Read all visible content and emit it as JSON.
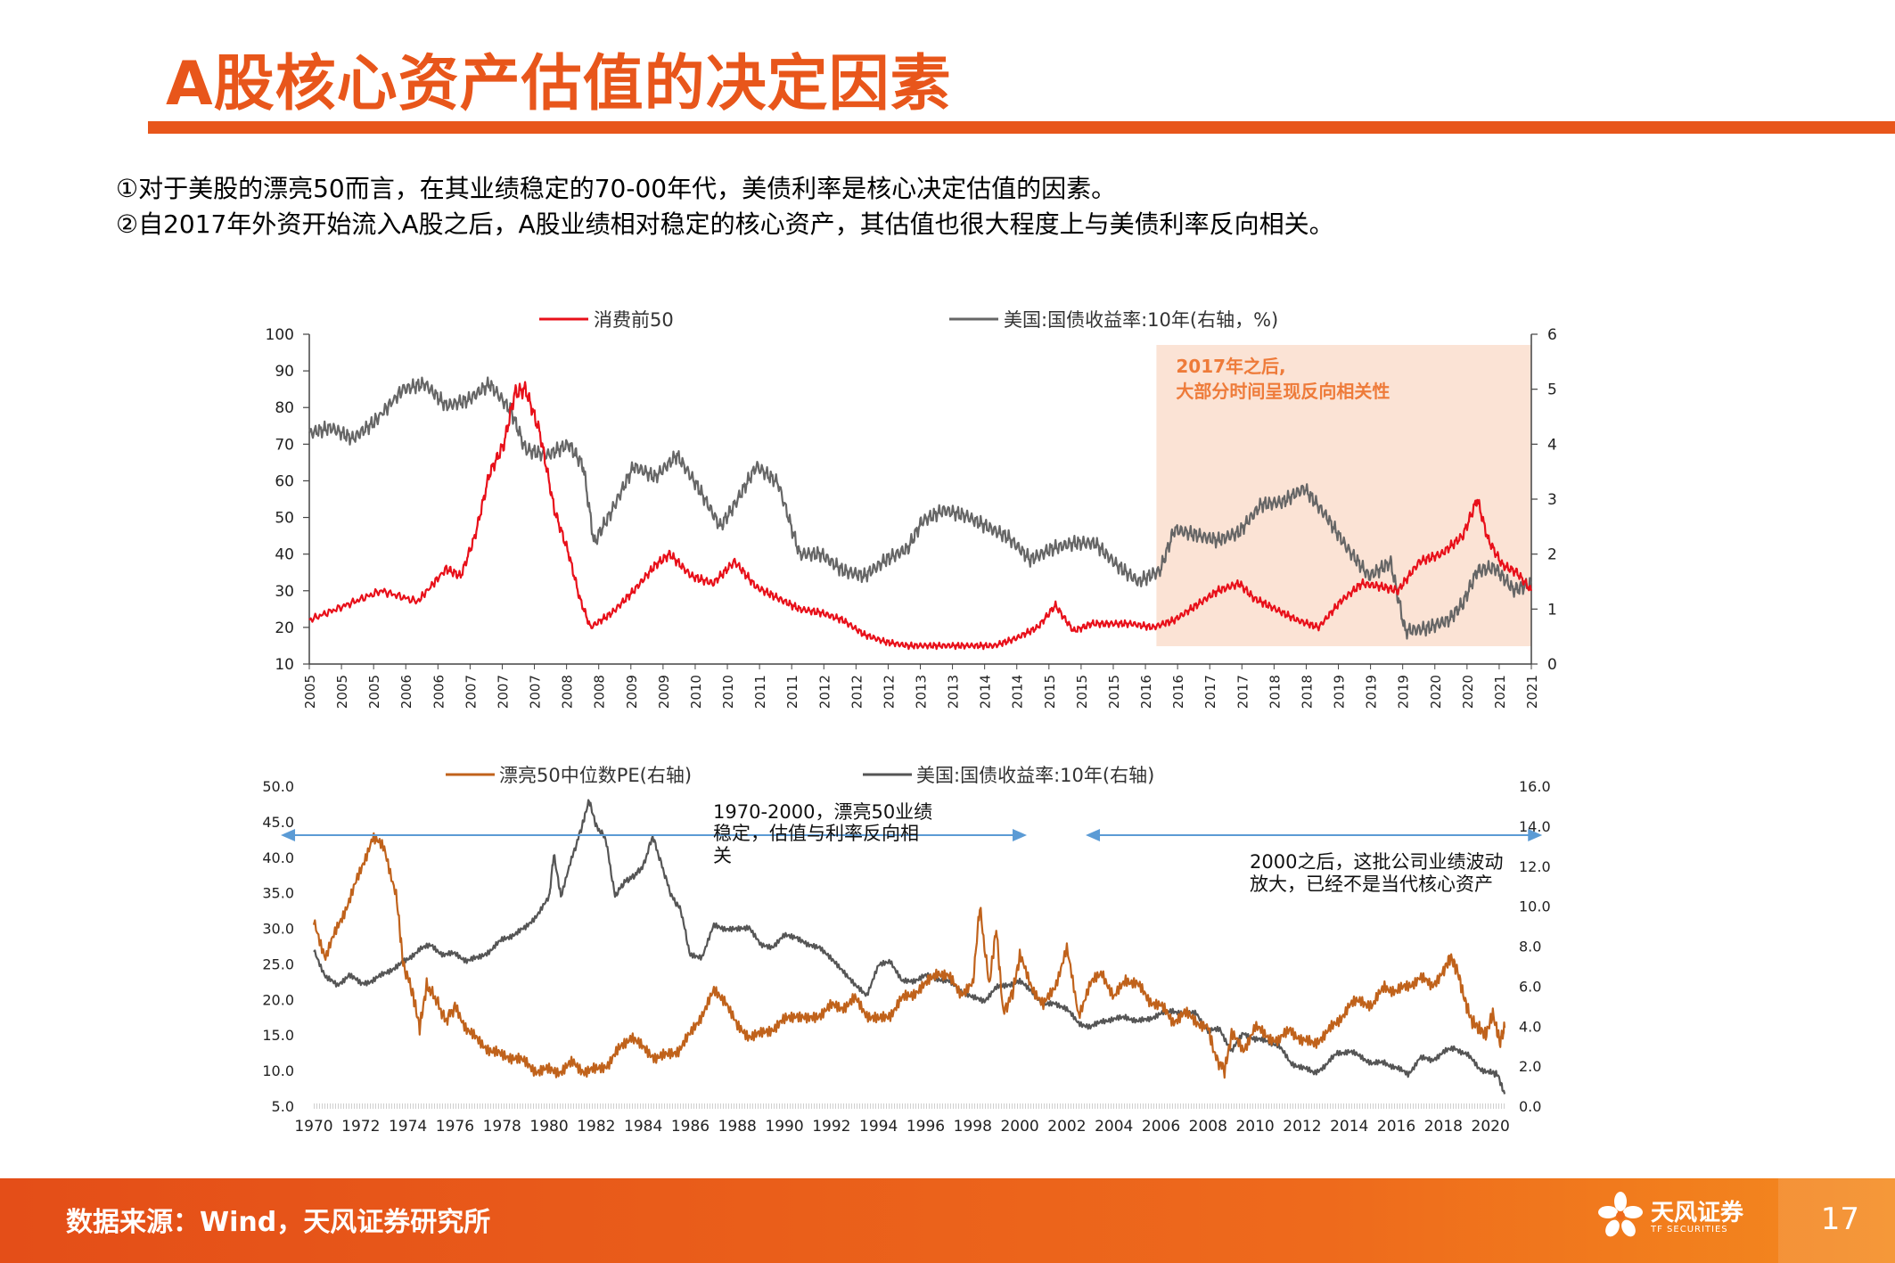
{
  "header": {
    "title": "A股核心资产估值的决定因素",
    "accent": "#e8561b"
  },
  "intro": {
    "line1": "①对于美股的漂亮50而言，在其业绩稳定的70-00年代，美债利率是核心决定估值的因素。",
    "line2": "②自2017年外资开始流入A股之后，A股业绩相对稳定的核心资产，其估值也很大程度上与美债利率反向相关。"
  },
  "footer": {
    "source": "数据来源：Wind，天风证券研究所",
    "logo_main": "天风证券",
    "logo_sub": "TF SECURITIES",
    "page_number": "17"
  },
  "chart_data": [
    {
      "type": "line",
      "title": "",
      "legend": {
        "placement": "top"
      },
      "y_left": {
        "min": 10,
        "max": 100,
        "ticks": [
          "100",
          "90",
          "80",
          "70",
          "60",
          "50",
          "40",
          "30",
          "20",
          "10"
        ]
      },
      "y_right": {
        "min": 0,
        "max": 6,
        "ticks": [
          "6",
          "5",
          "4",
          "3",
          "2",
          "1",
          "0"
        ]
      },
      "x_range": [
        2005,
        2021.95
      ],
      "x_tick_labels": [
        "2005",
        "2005",
        "2005",
        "2006",
        "2006",
        "2007",
        "2007",
        "2007",
        "2008",
        "2008",
        "2009",
        "2009",
        "2010",
        "2010",
        "2011",
        "2011",
        "2012",
        "2012",
        "2012",
        "2013",
        "2013",
        "2014",
        "2014",
        "2015",
        "2015",
        "2015",
        "2016",
        "2016",
        "2017",
        "2017",
        "2018",
        "2018",
        "2019",
        "2019",
        "2019",
        "2020",
        "2020",
        "2021",
        "2021"
      ],
      "annotation": {
        "text_line1": "2017年之后,",
        "text_line2": "大部分时间呈现反向相关性",
        "x_start": 2016.75,
        "x_end": 2021.95,
        "color": "#fbe3d5",
        "text_color": "#ee7b3a"
      },
      "series": [
        {
          "name": "消费前50",
          "axis": "left",
          "color": "#e8101a",
          "x": [
            2005.0,
            2005.5,
            2006.0,
            2006.5,
            2006.9,
            2007.1,
            2007.3,
            2007.5,
            2007.7,
            2007.85,
            2008.0,
            2008.2,
            2008.4,
            2008.6,
            2008.75,
            2008.9,
            2009.2,
            2009.5,
            2009.8,
            2010.0,
            2010.3,
            2010.6,
            2010.9,
            2011.2,
            2011.5,
            2011.8,
            2012.1,
            2012.4,
            2012.7,
            2013.0,
            2013.3,
            2013.6,
            2013.9,
            2014.2,
            2014.5,
            2014.8,
            2015.1,
            2015.35,
            2015.6,
            2015.85,
            2016.1,
            2016.4,
            2016.7,
            2017.0,
            2017.3,
            2017.6,
            2017.9,
            2018.1,
            2018.4,
            2018.7,
            2019.0,
            2019.3,
            2019.6,
            2019.9,
            2020.1,
            2020.4,
            2020.7,
            2021.0,
            2021.2,
            2021.35,
            2021.55,
            2021.75,
            2021.95
          ],
          "values": [
            22,
            26,
            30,
            27,
            36,
            34,
            45,
            62,
            70,
            84,
            85,
            73,
            52,
            40,
            28,
            20,
            24,
            30,
            37,
            40,
            34,
            32,
            38,
            31,
            28,
            25,
            24,
            22,
            18,
            16,
            15,
            15,
            15,
            15,
            15,
            17,
            20,
            26,
            19,
            21,
            21,
            21,
            20,
            22,
            26,
            30,
            32,
            28,
            25,
            22,
            20,
            27,
            32,
            31,
            30,
            38,
            40,
            45,
            55,
            44,
            37,
            35,
            30
          ]
        },
        {
          "name": "美国:国债收益率:10年(右轴，%)",
          "axis": "right",
          "color": "#666666",
          "x": [
            2005.0,
            2005.3,
            2005.6,
            2005.9,
            2006.3,
            2006.6,
            2006.9,
            2007.2,
            2007.5,
            2007.8,
            2008.0,
            2008.3,
            2008.6,
            2008.8,
            2008.95,
            2009.2,
            2009.5,
            2009.8,
            2010.1,
            2010.4,
            2010.7,
            2010.9,
            2011.2,
            2011.5,
            2011.8,
            2012.1,
            2012.4,
            2012.7,
            2013.0,
            2013.3,
            2013.5,
            2013.8,
            2014.1,
            2014.4,
            2014.7,
            2015.0,
            2015.3,
            2015.6,
            2015.9,
            2016.2,
            2016.5,
            2016.8,
            2017.0,
            2017.3,
            2017.6,
            2017.9,
            2018.2,
            2018.5,
            2018.8,
            2019.1,
            2019.4,
            2019.7,
            2020.0,
            2020.2,
            2020.5,
            2020.8,
            2021.0,
            2021.2,
            2021.45,
            2021.7,
            2021.95
          ],
          "values": [
            4.2,
            4.3,
            4.1,
            4.4,
            5.0,
            5.1,
            4.7,
            4.8,
            5.1,
            4.6,
            3.9,
            3.8,
            4.0,
            3.6,
            2.2,
            2.8,
            3.6,
            3.4,
            3.8,
            3.2,
            2.5,
            2.9,
            3.6,
            3.3,
            2.0,
            2.0,
            1.7,
            1.6,
            1.9,
            2.1,
            2.6,
            2.8,
            2.7,
            2.5,
            2.3,
            1.9,
            2.1,
            2.2,
            2.2,
            1.8,
            1.5,
            1.7,
            2.45,
            2.35,
            2.25,
            2.4,
            2.9,
            2.95,
            3.2,
            2.7,
            2.1,
            1.6,
            1.85,
            0.6,
            0.65,
            0.8,
            1.1,
            1.7,
            1.75,
            1.35,
            1.45
          ]
        }
      ]
    },
    {
      "type": "line",
      "title": "",
      "legend": {
        "placement": "top"
      },
      "y_left": {
        "min": 5,
        "max": 50,
        "ticks": [
          "50.0",
          "45.0",
          "40.0",
          "35.0",
          "30.0",
          "25.0",
          "20.0",
          "15.0",
          "10.0",
          "5.0"
        ]
      },
      "y_right": {
        "min": 0,
        "max": 16,
        "ticks": [
          "16.0",
          "14.0",
          "12.0",
          "10.0",
          "8.0",
          "6.0",
          "4.0",
          "2.0",
          "0.0"
        ]
      },
      "x_range": [
        1970,
        2020.6
      ],
      "x_tick_labels": [
        "1970",
        "1972",
        "1974",
        "1976",
        "1978",
        "1980",
        "1982",
        "1984",
        "1986",
        "1988",
        "1990",
        "1992",
        "1994",
        "1996",
        "1998",
        "2000",
        "2002",
        "2004",
        "2006",
        "2008",
        "2010",
        "2012",
        "2014",
        "2016",
        "2018",
        "2020"
      ],
      "annotations": [
        {
          "text_line1": "1970-2000，漂亮50业绩",
          "text_line2": "稳定，估值与利率反向相",
          "text_line3": "关",
          "arrow_x": [
            1968.6,
            2000.3
          ]
        },
        {
          "text_line1": "2000之后，这批公司业绩波动",
          "text_line2": "放大，已经不是当代核心资产",
          "arrow_x": [
            2002.8,
            2022.2
          ]
        }
      ],
      "series": [
        {
          "name": "漂亮50中位数PE(右轴)",
          "axis": "left",
          "color": "#c0621b",
          "x": [
            1970.0,
            1970.5,
            1971.0,
            1971.5,
            1972.0,
            1972.5,
            1973.0,
            1973.5,
            1973.8,
            1974.2,
            1974.5,
            1974.8,
            1975.2,
            1975.6,
            1976.0,
            1976.5,
            1977.0,
            1977.5,
            1978.0,
            1978.5,
            1979.0,
            1979.5,
            1980.0,
            1980.5,
            1981.0,
            1981.5,
            1982.0,
            1982.5,
            1983.0,
            1983.5,
            1984.0,
            1984.5,
            1985.0,
            1985.5,
            1986.0,
            1986.5,
            1987.0,
            1987.5,
            1988.0,
            1988.5,
            1989.0,
            1989.5,
            1990.0,
            1990.5,
            1991.0,
            1991.5,
            1992.0,
            1992.5,
            1993.0,
            1993.5,
            1994.0,
            1994.5,
            1995.0,
            1995.5,
            1996.0,
            1996.5,
            1997.0,
            1997.5,
            1998.0,
            1998.3,
            1998.7,
            1999.0,
            1999.3,
            1999.7,
            2000.0,
            2000.5,
            2001.0,
            2001.5,
            2002.0,
            2002.5,
            2003.0,
            2003.5,
            2004.0,
            2004.5,
            2005.0,
            2005.5,
            2006.0,
            2006.5,
            2007.0,
            2007.5,
            2008.0,
            2008.3,
            2008.7,
            2009.0,
            2009.5,
            2010.0,
            2010.5,
            2011.0,
            2011.5,
            2012.0,
            2012.5,
            2013.0,
            2013.5,
            2014.0,
            2014.5,
            2015.0,
            2015.5,
            2016.0,
            2016.5,
            2017.0,
            2017.5,
            2018.0,
            2018.3,
            2018.6,
            2018.9,
            2019.2,
            2019.5,
            2019.8,
            2020.1,
            2020.4,
            2020.6
          ],
          "values": [
            31,
            26,
            30,
            34,
            38,
            43,
            41,
            35,
            25,
            21,
            16,
            22,
            20,
            17,
            19,
            16,
            14,
            13,
            12,
            12,
            11,
            10,
            10,
            10,
            11,
            10,
            10,
            11,
            13,
            15,
            13,
            12,
            12,
            13,
            15,
            18,
            21,
            20,
            16,
            15,
            15,
            16,
            17,
            18,
            17,
            18,
            19,
            19,
            20,
            18,
            17,
            18,
            20,
            21,
            22,
            24,
            23,
            21,
            22,
            33,
            22,
            30,
            18,
            21,
            26,
            22,
            19,
            22,
            27,
            18,
            22,
            24,
            20,
            23,
            22,
            20,
            19,
            17,
            18,
            17,
            16,
            12,
            10,
            15,
            13,
            16,
            15,
            14,
            16,
            14,
            14,
            15,
            17,
            19,
            20,
            19,
            22,
            21,
            22,
            23,
            22,
            24,
            26,
            24,
            20,
            17,
            16,
            15,
            18,
            14,
            16
          ]
        },
        {
          "name": "美国:国债收益率:10年(右轴)",
          "axis": "right",
          "color": "#555555",
          "x": [
            1970.0,
            1970.5,
            1971.0,
            1971.5,
            1972.0,
            1972.5,
            1973.0,
            1973.5,
            1974.0,
            1974.5,
            1975.0,
            1975.5,
            1976.0,
            1976.5,
            1977.0,
            1977.5,
            1978.0,
            1978.5,
            1979.0,
            1979.5,
            1980.0,
            1980.2,
            1980.5,
            1981.0,
            1981.4,
            1981.7,
            1982.0,
            1982.4,
            1982.8,
            1983.2,
            1983.6,
            1984.0,
            1984.4,
            1984.8,
            1985.2,
            1985.6,
            1986.0,
            1986.5,
            1987.0,
            1987.5,
            1988.0,
            1988.5,
            1989.0,
            1989.5,
            1990.0,
            1990.5,
            1991.0,
            1991.5,
            1992.0,
            1992.5,
            1993.0,
            1993.5,
            1994.0,
            1994.5,
            1995.0,
            1995.5,
            1996.0,
            1996.5,
            1997.0,
            1997.5,
            1998.0,
            1998.5,
            1999.0,
            1999.5,
            2000.0,
            2000.5,
            2001.0,
            2001.5,
            2002.0,
            2002.5,
            2003.0,
            2003.5,
            2004.0,
            2004.5,
            2005.0,
            2005.5,
            2006.0,
            2006.5,
            2007.0,
            2007.5,
            2008.0,
            2008.5,
            2009.0,
            2009.5,
            2010.0,
            2010.5,
            2011.0,
            2011.5,
            2012.0,
            2012.5,
            2013.0,
            2013.5,
            2014.0,
            2014.5,
            2015.0,
            2015.5,
            2016.0,
            2016.5,
            2017.0,
            2017.5,
            2018.0,
            2018.5,
            2019.0,
            2019.5,
            2020.0,
            2020.3,
            2020.6
          ],
          "values": [
            7.8,
            6.5,
            6.0,
            6.6,
            6.1,
            6.3,
            6.6,
            7.0,
            7.3,
            7.9,
            8.0,
            7.6,
            7.6,
            7.3,
            7.4,
            7.8,
            8.3,
            8.6,
            8.9,
            9.6,
            10.4,
            12.6,
            10.5,
            12.5,
            14.0,
            15.3,
            14.0,
            13.4,
            10.5,
            11.2,
            11.5,
            12.0,
            13.5,
            12.0,
            10.5,
            9.8,
            7.5,
            7.5,
            9.0,
            8.9,
            8.8,
            9.0,
            8.0,
            8.0,
            8.5,
            8.5,
            8.0,
            8.0,
            7.3,
            6.8,
            6.0,
            5.6,
            7.0,
            7.3,
            6.2,
            6.3,
            6.5,
            6.4,
            6.2,
            5.8,
            5.4,
            5.3,
            5.9,
            6.1,
            6.2,
            5.8,
            5.0,
            5.2,
            4.8,
            4.2,
            3.9,
            4.3,
            4.3,
            4.5,
            4.2,
            4.4,
            4.6,
            4.8,
            4.6,
            4.7,
            3.7,
            3.9,
            2.7,
            3.7,
            3.3,
            3.3,
            3.0,
            2.2,
            1.9,
            1.7,
            2.0,
            2.7,
            2.7,
            2.5,
            2.1,
            2.2,
            1.9,
            1.6,
            2.4,
            2.3,
            2.7,
            2.9,
            2.6,
            1.9,
            1.7,
            1.6,
            0.6
          ]
        }
      ]
    }
  ]
}
